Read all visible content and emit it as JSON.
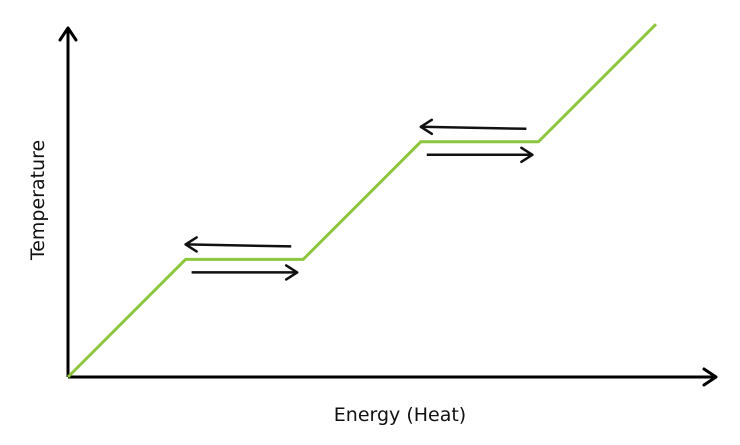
{
  "chart_data": {
    "type": "line",
    "title": "",
    "xlabel": "Energy (Heat)",
    "ylabel": "Temperature",
    "x": [
      0,
      1.2,
      2.4,
      3.6,
      4.8,
      6.0
    ],
    "series": [
      {
        "values": [
          0,
          1.2,
          1.2,
          2.4,
          2.4,
          3.6
        ]
      }
    ],
    "xlim": [
      0,
      6.6
    ],
    "ylim": [
      0,
      3.6
    ],
    "grid": false,
    "show_tick_labels": false,
    "line_color": "#8dc63f",
    "arrow_color": "#111111",
    "plateau_arrows": [
      {
        "plateau": 1,
        "directions": [
          "left",
          "right"
        ]
      },
      {
        "plateau": 2,
        "directions": [
          "left",
          "right"
        ]
      }
    ]
  }
}
